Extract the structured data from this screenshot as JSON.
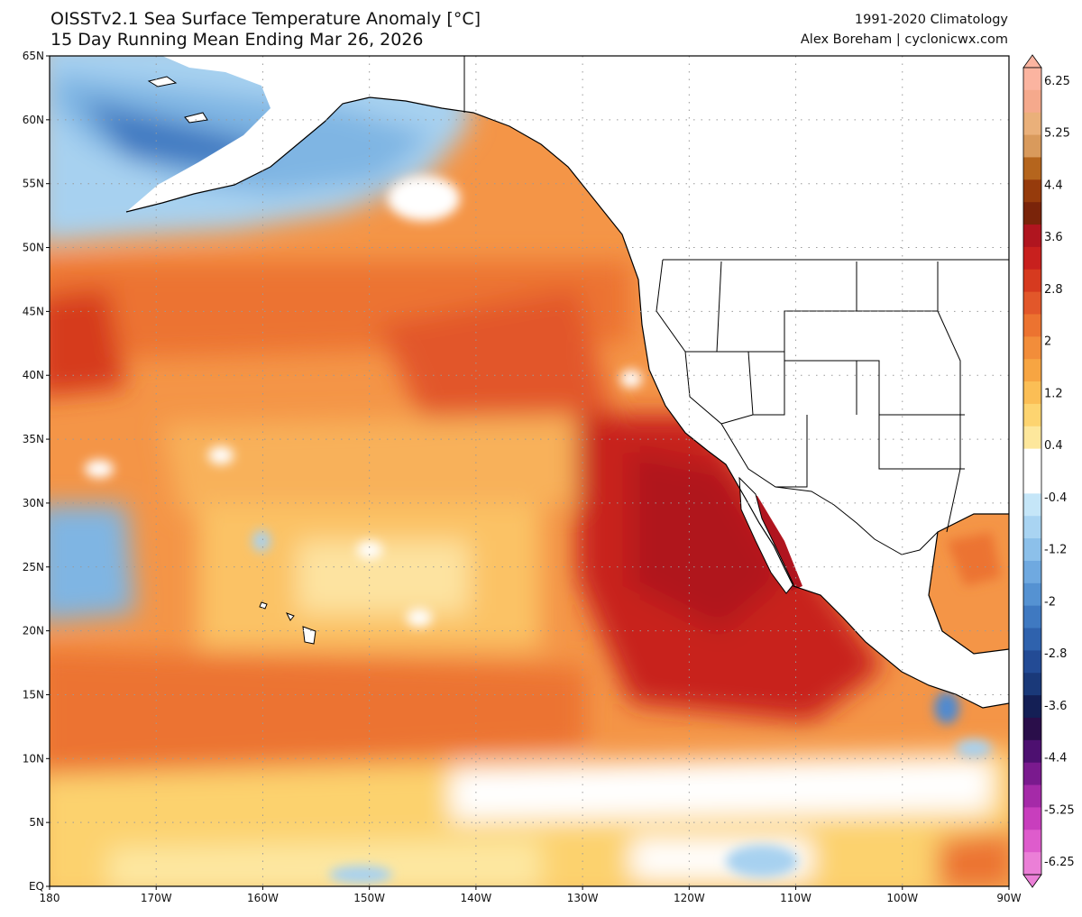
{
  "header": {
    "title": "OISSTv2.1 Sea Surface Temperature Anomaly [°C]",
    "subtitle": "15 Day Running Mean Ending Mar 26, 2026",
    "climatology": "1991-2020 Climatology",
    "credit": "Alex Boreham | cyclonicwx.com"
  },
  "map": {
    "lat_range": [
      0,
      65
    ],
    "lon_range": [
      -180,
      -90
    ],
    "lat_ticks": [
      "65N",
      "60N",
      "55N",
      "50N",
      "45N",
      "40N",
      "35N",
      "30N",
      "25N",
      "20N",
      "15N",
      "10N",
      "5N",
      "EQ"
    ],
    "lon_ticks": [
      "180",
      "170W",
      "160W",
      "150W",
      "140W",
      "130W",
      "120W",
      "110W",
      "100W",
      "90W"
    ],
    "colors": {
      "land": "#ffffff",
      "border": "#000000",
      "grid": "#9a9a9a"
    }
  },
  "colorbar": {
    "labels": [
      "6.25",
      "5.25",
      "4.4",
      "3.6",
      "2.8",
      "2",
      "1.2",
      "0.4",
      "-0.4",
      "-1.2",
      "-2",
      "-2.8",
      "-3.6",
      "-4.4",
      "-5.25",
      "-6.25"
    ],
    "colors": [
      "#fbb4a0",
      "#f5a98c",
      "#eab07a",
      "#d99a5c",
      "#b5651d",
      "#963b0c",
      "#7a240a",
      "#b0151f",
      "#c8201e",
      "#d63a1f",
      "#e2572a",
      "#ec7330",
      "#f28d3a",
      "#f7a542",
      "#fbbe55",
      "#fdd470",
      "#fde79c",
      "#ffffff",
      "#ffffff",
      "#c5e6f8",
      "#a9d4f2",
      "#8cc0ea",
      "#6fa9e0",
      "#5592d2",
      "#3f79c1",
      "#2f62ad",
      "#234b95",
      "#1a3979",
      "#141f55",
      "#2a0e4a",
      "#4d1070",
      "#7a1a8e",
      "#a52aa8",
      "#c83ebd",
      "#de5ccc",
      "#eb7fd7"
    ]
  }
}
